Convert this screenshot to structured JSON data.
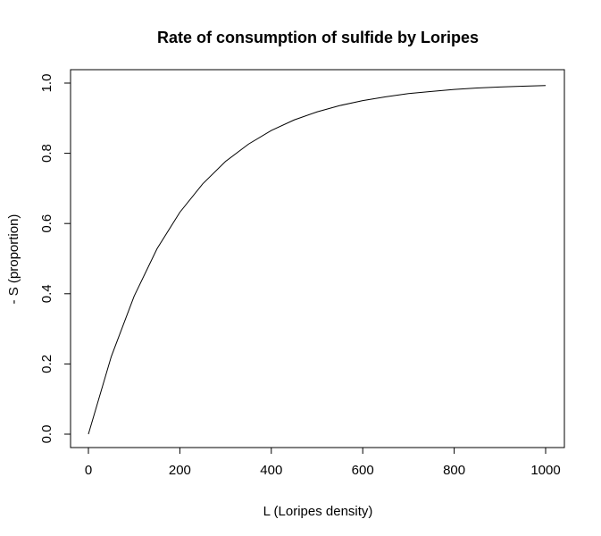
{
  "chart_data": {
    "type": "line",
    "title": "Rate of consumption of sulfide by Loripes",
    "xlabel": "L (Loripes density)",
    "ylabel": "- S (proportion)",
    "xlim": [
      0,
      1000
    ],
    "ylim": [
      0,
      1
    ],
    "x_ticks": [
      {
        "value": 0,
        "label": "0"
      },
      {
        "value": 200,
        "label": "200"
      },
      {
        "value": 400,
        "label": "400"
      },
      {
        "value": 600,
        "label": "600"
      },
      {
        "value": 800,
        "label": "800"
      },
      {
        "value": 1000,
        "label": "1000"
      }
    ],
    "y_ticks": [
      {
        "value": 0.0,
        "label": "0.0"
      },
      {
        "value": 0.2,
        "label": "0.2"
      },
      {
        "value": 0.4,
        "label": "0.4"
      },
      {
        "value": 0.6,
        "label": "0.6"
      },
      {
        "value": 0.8,
        "label": "0.8"
      },
      {
        "value": 1.0,
        "label": "1.0"
      }
    ],
    "series": [
      {
        "x": [
          0,
          50,
          100,
          150,
          200,
          250,
          300,
          350,
          400,
          450,
          500,
          550,
          600,
          650,
          700,
          750,
          800,
          850,
          900,
          950,
          1000
        ],
        "y": [
          0.0,
          0.221,
          0.393,
          0.528,
          0.632,
          0.713,
          0.777,
          0.826,
          0.865,
          0.895,
          0.918,
          0.936,
          0.95,
          0.961,
          0.97,
          0.976,
          0.982,
          0.986,
          0.989,
          0.991,
          0.993
        ]
      }
    ],
    "grid": false,
    "line_color": "#000000"
  }
}
